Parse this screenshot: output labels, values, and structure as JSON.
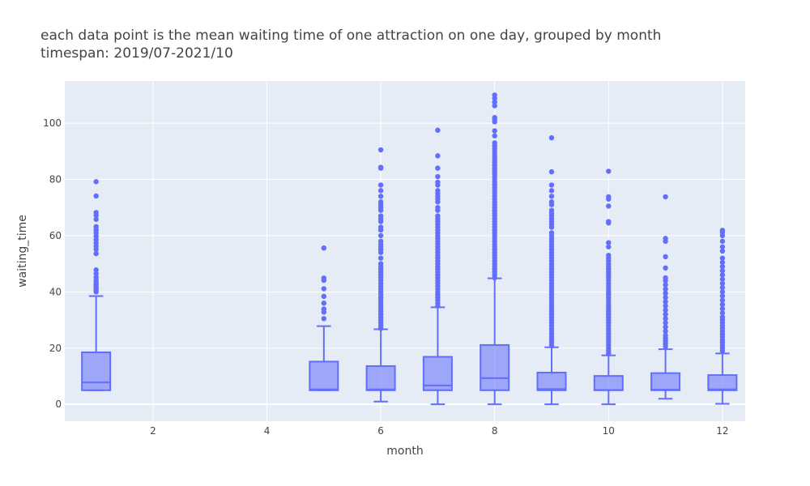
{
  "chart_data": {
    "type": "box",
    "title_lines": [
      "each data point is the mean waiting time of one attraction on one day, grouped by month",
      "timespan: 2019/07-2021/10"
    ],
    "xlabel": "month",
    "ylabel": "waiting_time",
    "xlim": [
      0.45,
      12.4
    ],
    "ylim": [
      -6,
      115
    ],
    "xticks": [
      2,
      4,
      6,
      8,
      10,
      12
    ],
    "yticks": [
      0,
      20,
      40,
      60,
      80,
      100
    ],
    "grid": true,
    "colors": {
      "box": "#636efa",
      "box_fill": "rgba(99,110,250,0.55)",
      "plot_bg": "#e5ecf6",
      "grid": "#ffffff"
    },
    "boxes": [
      {
        "month": 1,
        "q1": 5,
        "median": 7.8,
        "q3": 18.5,
        "lowerfence": 5,
        "upperfence": 38.5,
        "outliers": [
          40,
          40.6,
          41.2,
          41.8,
          42.6,
          43.3,
          44.1,
          45.2,
          46.5,
          47.8,
          53.6,
          55.1,
          56.3,
          57.4,
          58.6,
          59.8,
          61,
          62.1,
          63.2,
          65.8,
          67.2,
          68.2,
          74.1,
          79.2
        ]
      },
      {
        "month": 5,
        "q1": 5,
        "median": 5.3,
        "q3": 15.2,
        "lowerfence": 5,
        "upperfence": 27.8,
        "outliers": [
          30.5,
          32.8,
          33.9,
          36,
          38.4,
          41.1,
          44.1,
          44.9,
          55.6
        ]
      },
      {
        "month": 6,
        "q1": 5,
        "median": 5.3,
        "q3": 13.6,
        "lowerfence": 1,
        "upperfence": 26.7,
        "outliers": [
          27,
          28,
          29,
          30,
          31,
          32,
          33,
          34,
          35,
          36,
          37,
          38,
          39,
          40,
          41,
          42,
          43,
          44,
          45,
          46,
          47,
          48,
          49,
          50,
          52,
          54,
          55,
          56,
          57,
          58,
          60,
          62,
          63,
          65,
          66,
          67,
          69,
          70,
          71,
          72,
          74,
          76,
          78,
          84,
          84.3,
          90.5
        ]
      },
      {
        "month": 7,
        "q1": 5,
        "median": 6.7,
        "q3": 16.9,
        "lowerfence": 0,
        "upperfence": 34.5,
        "outliers": [
          35,
          36,
          37,
          38,
          39,
          40,
          41,
          42,
          43,
          44,
          45,
          46,
          47,
          48,
          49,
          50,
          51,
          52,
          53,
          54,
          55,
          56,
          57,
          58,
          59,
          60,
          61,
          62,
          63,
          64,
          65,
          66,
          67,
          69,
          70,
          72,
          73,
          74,
          75,
          76,
          78,
          79,
          81,
          84,
          88.4,
          97.5
        ]
      },
      {
        "month": 8,
        "q1": 5,
        "median": 9.3,
        "q3": 21.1,
        "lowerfence": 0,
        "upperfence": 44.8,
        "outliers": [
          45,
          46,
          47,
          48,
          49,
          50,
          51,
          52,
          53,
          54,
          55,
          56,
          57,
          58,
          59,
          60,
          61,
          62,
          63,
          64,
          65,
          66,
          67,
          68,
          69,
          70,
          71,
          72,
          73,
          74,
          75,
          76,
          77,
          78,
          79,
          80,
          81,
          82,
          83,
          84,
          85,
          86,
          87,
          88,
          89,
          90,
          91,
          92,
          93,
          95.5,
          97.3,
          100.5,
          101.4,
          102,
          106.2,
          107.5,
          108.8,
          110
        ]
      },
      {
        "month": 9,
        "q1": 5,
        "median": 5.4,
        "q3": 11.3,
        "lowerfence": 0,
        "upperfence": 20.3,
        "outliers": [
          21,
          22,
          23,
          24,
          25,
          26,
          27,
          28,
          29,
          30,
          31,
          32,
          33,
          34,
          35,
          36,
          37,
          38,
          39,
          40,
          41,
          42,
          43,
          44,
          45,
          46,
          47,
          48,
          49,
          50,
          51,
          52,
          53,
          54,
          55,
          56,
          57,
          58,
          59,
          60,
          61,
          63,
          64,
          65,
          66,
          67,
          68,
          69,
          71,
          72,
          74,
          76,
          78,
          82.7,
          94.8
        ]
      },
      {
        "month": 10,
        "q1": 5,
        "median": 5.1,
        "q3": 10.1,
        "lowerfence": 0,
        "upperfence": 17.4,
        "outliers": [
          18,
          19,
          20,
          21,
          22,
          23,
          24,
          25,
          26,
          27,
          28,
          29,
          30,
          31,
          32,
          33,
          34,
          35,
          36,
          37,
          38,
          39,
          40,
          41,
          42,
          43,
          44,
          45,
          46,
          47,
          48,
          49,
          50,
          51,
          52,
          53,
          56,
          57.5,
          64.5,
          65,
          70.5,
          73,
          73.8,
          82.9
        ]
      },
      {
        "month": 11,
        "q1": 5,
        "median": 5.2,
        "q3": 11.1,
        "lowerfence": 2,
        "upperfence": 19.6,
        "outliers": [
          20.5,
          21.5,
          22.5,
          23.5,
          24.5,
          26,
          27.5,
          29,
          30.5,
          32,
          33.5,
          35,
          36.5,
          38,
          39.5,
          41,
          42.5,
          44,
          45,
          48.5,
          52.5,
          58,
          59,
          73.8
        ]
      },
      {
        "month": 12,
        "q1": 5,
        "median": 5.3,
        "q3": 10.4,
        "lowerfence": 0.2,
        "upperfence": 18.1,
        "outliers": [
          19,
          20,
          21,
          22,
          23,
          24,
          25,
          26,
          27,
          28,
          29,
          30,
          31,
          32.5,
          34,
          35.5,
          37,
          38.5,
          40,
          41.5,
          43,
          44.5,
          46,
          47.5,
          49,
          50.5,
          52,
          54.5,
          56,
          58,
          60,
          61.2,
          61.9
        ]
      }
    ]
  }
}
